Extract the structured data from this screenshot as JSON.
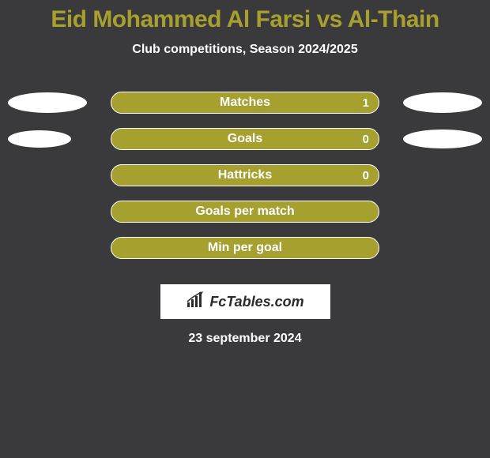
{
  "background_color": "#3a3a3c",
  "title": "Eid Mohammed Al Farsi vs Al-Thain",
  "title_color": "#a6a02f",
  "subtitle": "Club competitions, Season 2024/2025",
  "subtitle_color": "#ffffff",
  "bar_fill_color": "#a6a02f",
  "bar_border_color": "#ffffff",
  "bar_label_color": "#ffffff",
  "ellipse_color": "#ffffff",
  "rows": [
    {
      "label": "Matches",
      "value_right": "1",
      "left_ellipse_w": 100,
      "left_ellipse_h": 26,
      "right_ellipse_w": 100,
      "right_ellipse_h": 26
    },
    {
      "label": "Goals",
      "value_right": "0",
      "left_ellipse_w": 80,
      "left_ellipse_h": 22,
      "right_ellipse_w": 100,
      "right_ellipse_h": 24
    },
    {
      "label": "Hattricks",
      "value_right": "0",
      "left_ellipse_w": 0,
      "left_ellipse_h": 0,
      "right_ellipse_w": 0,
      "right_ellipse_h": 0
    },
    {
      "label": "Goals per match",
      "value_right": "",
      "left_ellipse_w": 0,
      "left_ellipse_h": 0,
      "right_ellipse_w": 0,
      "right_ellipse_h": 0
    },
    {
      "label": "Min per goal",
      "value_right": "",
      "left_ellipse_w": 0,
      "left_ellipse_h": 0,
      "right_ellipse_w": 0,
      "right_ellipse_h": 0
    }
  ],
  "branding_bg": "#ffffff",
  "branding_text": "FcTables.com",
  "branding_text_color": "#2b2b2b",
  "date": "23 september 2024",
  "date_color": "#ffffff"
}
